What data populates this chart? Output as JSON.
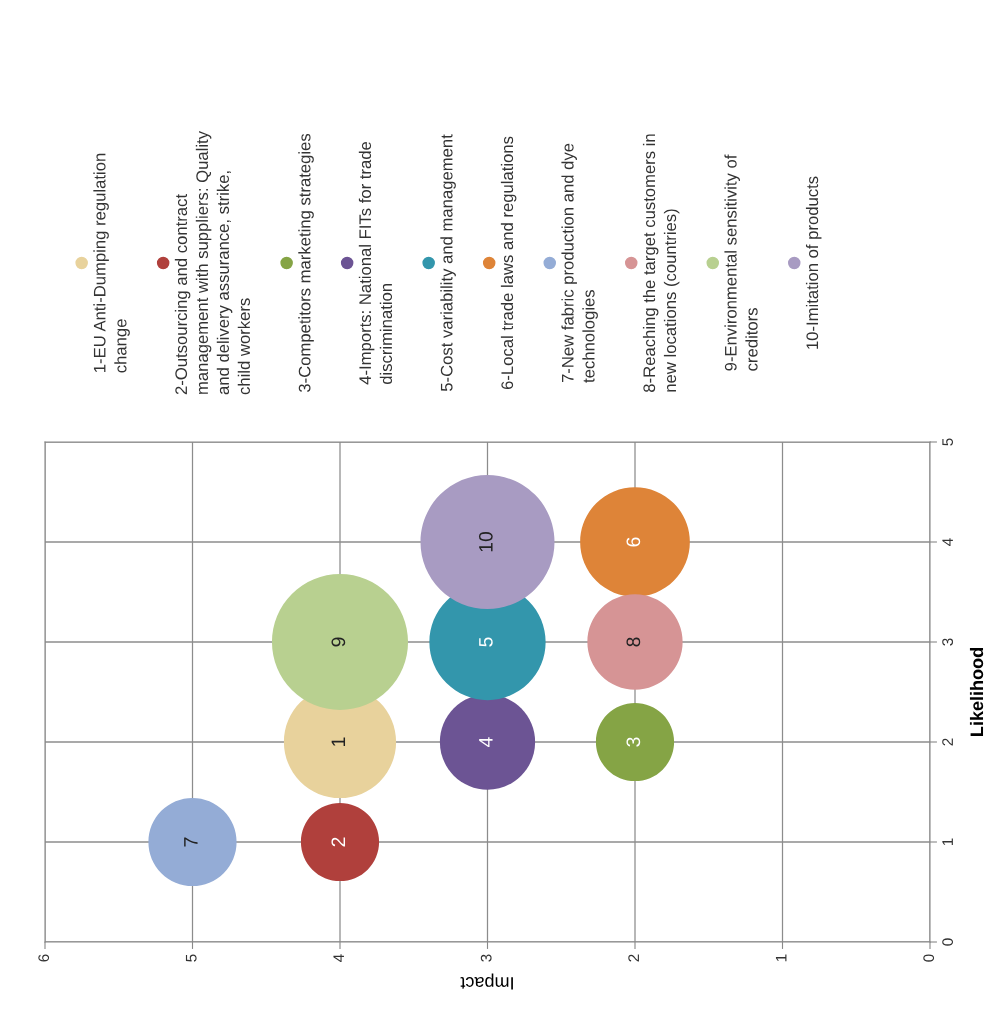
{
  "chart_data": {
    "type": "bubble",
    "xlabel": "Impact",
    "ylabel": "Likelihood",
    "xlim": [
      6,
      0
    ],
    "xticks": [
      0,
      1,
      2,
      3,
      4,
      5,
      6
    ],
    "ylim": [
      0,
      5
    ],
    "yticks": [
      0,
      1,
      2,
      3,
      4,
      5
    ],
    "grid": true,
    "legend": "top",
    "series": [
      {
        "name": "1-EU Anti-Dumping regulation change",
        "color": "#e8d29c",
        "x": [
          4
        ],
        "values": [
          2
        ],
        "sizes": [
          0.68
        ]
      },
      {
        "name": "2-Outsourcing and contract management with suppliers: Quality and delivery assurance, strike, child workers",
        "color": "#b0403c",
        "x": [
          4
        ],
        "values": [
          1
        ],
        "sizes": [
          0.33
        ]
      },
      {
        "name": "3-Competitors marketing strategies",
        "color": "#85a445",
        "x": [
          2
        ],
        "values": [
          2
        ],
        "sizes": [
          0.33
        ]
      },
      {
        "name": "4-Imports: National FITs for trade discrimination",
        "color": "#6c5494",
        "x": [
          3
        ],
        "values": [
          2
        ],
        "sizes": [
          0.49
        ]
      },
      {
        "name": "5-Cost variability and management",
        "color": "#3396ac",
        "x": [
          3
        ],
        "values": [
          3
        ],
        "sizes": [
          0.73
        ]
      },
      {
        "name": "6-Local trade laws and regulations",
        "color": "#de8438",
        "x": [
          2
        ],
        "values": [
          4
        ],
        "sizes": [
          0.65
        ]
      },
      {
        "name": "7-New fabric production and dye technologies",
        "color": "#94acd6",
        "x": [
          5
        ],
        "values": [
          1
        ],
        "sizes": [
          0.42
        ]
      },
      {
        "name": "8-Reaching the target customers in new locations (countries)",
        "color": "#d69495",
        "x": [
          2
        ],
        "values": [
          3
        ],
        "sizes": [
          0.49
        ]
      },
      {
        "name": "9-Environmental sensitivity of creditors",
        "color": "#b8d090",
        "x": [
          4
        ],
        "values": [
          3
        ],
        "sizes": [
          1
        ]
      },
      {
        "name": "10-Imitation of products",
        "color": "#a89bc2",
        "x": [
          3
        ],
        "values": [
          4
        ],
        "sizes": [
          0.97
        ]
      }
    ],
    "annotations": [
      {
        "text": "1",
        "x": 4,
        "y": 2
      },
      {
        "text": "2",
        "x": 4,
        "y": 1
      },
      {
        "text": "3",
        "x": 2,
        "y": 2
      },
      {
        "text": "4",
        "x": 3,
        "y": 2
      },
      {
        "text": "5",
        "x": 3,
        "y": 3
      },
      {
        "text": "6",
        "x": 2,
        "y": 4
      },
      {
        "text": "7",
        "x": 5,
        "y": 1
      },
      {
        "text": "8",
        "x": 2,
        "y": 3
      },
      {
        "text": "9",
        "x": 4,
        "y": 3
      },
      {
        "text": "10",
        "x": 3,
        "y": 4
      }
    ]
  }
}
